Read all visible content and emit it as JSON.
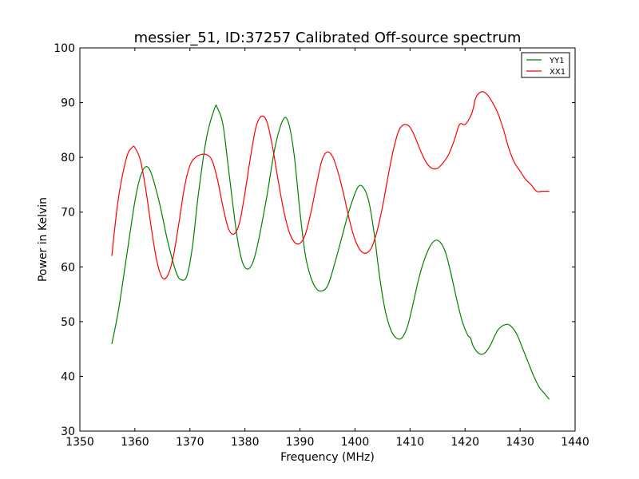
{
  "chart_data": {
    "type": "line",
    "title": "messier_51, ID:37257 Calibrated Off-source spectrum",
    "xlabel": "Frequency (MHz)",
    "ylabel": "Power in Kelvin",
    "xlim": [
      1350,
      1440
    ],
    "ylim": [
      30,
      100
    ],
    "xticks": [
      1350,
      1360,
      1370,
      1380,
      1390,
      1400,
      1410,
      1420,
      1430,
      1440
    ],
    "yticks": [
      30,
      40,
      50,
      60,
      70,
      80,
      90,
      100
    ],
    "grid": false,
    "legend_position": "top-right",
    "series": [
      {
        "name": "YY1",
        "color": "#008000",
        "x": [
          1355.8,
          1357,
          1358.5,
          1360,
          1361,
          1362,
          1363,
          1364.5,
          1366,
          1367.5,
          1368.5,
          1369.5,
          1370.5,
          1371.5,
          1373,
          1374.5,
          1375,
          1376,
          1377,
          1378.5,
          1379.5,
          1380.5,
          1381.5,
          1382.5,
          1384,
          1385.5,
          1387,
          1388,
          1389,
          1390,
          1391,
          1392,
          1393,
          1394,
          1395,
          1396,
          1397.5,
          1399,
          1400.5,
          1401.5,
          1402.5,
          1403.5,
          1404.5,
          1405.5,
          1406.5,
          1407.5,
          1408.5,
          1409.5,
          1410.5,
          1411.5,
          1412.5,
          1413.5,
          1414.5,
          1415.5,
          1416.5,
          1417.5,
          1418.5,
          1419.5,
          1420.5,
          1421,
          1421.5,
          1422.5,
          1423.5,
          1424.5,
          1426,
          1427.5,
          1428.5,
          1429.5,
          1430.5,
          1431.5,
          1432.5,
          1433.5,
          1434.5,
          1435.3
        ],
        "values": [
          45.9,
          52.0,
          62.0,
          72.0,
          76.5,
          78.3,
          77.0,
          71.5,
          64.5,
          59.0,
          57.6,
          58.5,
          64.0,
          73.0,
          83.5,
          89.0,
          89.0,
          86.0,
          78.0,
          66.0,
          61.0,
          59.6,
          61.0,
          65.0,
          73.0,
          82.0,
          87.0,
          86.0,
          80.0,
          70.0,
          62.0,
          58.0,
          56.0,
          55.6,
          56.5,
          59.5,
          65.0,
          70.5,
          74.5,
          74.5,
          72.0,
          66.0,
          58.0,
          52.0,
          48.5,
          47.0,
          47.0,
          49.0,
          53.0,
          57.5,
          61.0,
          63.5,
          64.8,
          64.5,
          62.5,
          58.5,
          54.0,
          50.0,
          47.5,
          47.0,
          45.5,
          44.2,
          44.2,
          45.5,
          48.5,
          49.5,
          49.0,
          47.5,
          45.0,
          42.5,
          40.0,
          38.0,
          36.8,
          35.8
        ]
      },
      {
        "name": "XX1",
        "color": "#ff0000",
        "x": [
          1355.8,
          1357,
          1358.5,
          1359.5,
          1360,
          1361,
          1362,
          1363,
          1364,
          1365,
          1366,
          1367,
          1368,
          1369,
          1370,
          1371,
          1372,
          1373,
          1374,
          1375,
          1376,
          1377,
          1378,
          1379,
          1380,
          1381,
          1382,
          1383,
          1384,
          1385,
          1386,
          1387,
          1388,
          1389,
          1390,
          1391,
          1392,
          1393,
          1394,
          1395,
          1396,
          1397,
          1398,
          1399,
          1400,
          1401,
          1402,
          1403,
          1404,
          1405,
          1406,
          1407,
          1408,
          1409,
          1410,
          1411,
          1412,
          1413,
          1414,
          1415,
          1416,
          1417,
          1418,
          1419,
          1420,
          1421,
          1421.5,
          1422,
          1423,
          1424,
          1425,
          1426,
          1427,
          1428,
          1429,
          1430,
          1431,
          1432,
          1433,
          1434,
          1435.3
        ],
        "values": [
          62.0,
          72.5,
          80.0,
          81.8,
          81.8,
          79.5,
          74.0,
          67.0,
          61.0,
          58.0,
          58.5,
          62.0,
          68.0,
          74.5,
          78.5,
          80.0,
          80.5,
          80.5,
          79.5,
          76.0,
          71.0,
          67.0,
          66.0,
          68.0,
          73.5,
          80.0,
          85.5,
          87.5,
          86.5,
          82.0,
          76.0,
          70.5,
          66.5,
          64.5,
          64.3,
          66.0,
          70.0,
          75.0,
          79.5,
          81.0,
          80.0,
          77.0,
          73.0,
          68.5,
          65.0,
          63.0,
          62.5,
          63.5,
          66.5,
          71.0,
          76.5,
          81.5,
          85.0,
          86.0,
          85.5,
          83.5,
          81.0,
          79.0,
          78.0,
          78.0,
          79.0,
          80.5,
          83.0,
          86.0,
          86.0,
          87.5,
          89.0,
          91.0,
          92.0,
          91.5,
          90.0,
          88.0,
          85.0,
          81.5,
          79.0,
          77.5,
          76.0,
          75.0,
          73.8,
          73.8,
          73.8
        ]
      }
    ]
  }
}
